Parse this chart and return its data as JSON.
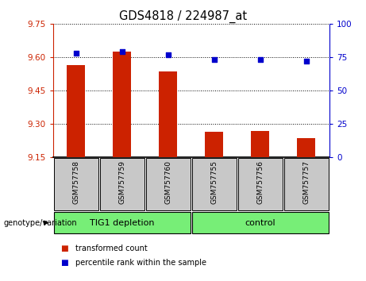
{
  "title": "GDS4818 / 224987_at",
  "samples": [
    "GSM757758",
    "GSM757759",
    "GSM757760",
    "GSM757755",
    "GSM757756",
    "GSM757757"
  ],
  "bar_values": [
    9.565,
    9.625,
    9.535,
    9.265,
    9.27,
    9.235
  ],
  "dot_values": [
    78,
    79,
    77,
    73,
    73,
    72
  ],
  "bar_color": "#cc2200",
  "dot_color": "#0000cc",
  "ylim_left": [
    9.15,
    9.75
  ],
  "ylim_right": [
    0,
    100
  ],
  "yticks_left": [
    9.15,
    9.3,
    9.45,
    9.6,
    9.75
  ],
  "yticks_right": [
    0,
    25,
    50,
    75,
    100
  ],
  "group_color": "#77ee77",
  "legend_items": [
    {
      "label": "transformed count",
      "color": "#cc2200"
    },
    {
      "label": "percentile rank within the sample",
      "color": "#0000cc"
    }
  ],
  "ylabel_left_color": "#cc2200",
  "ylabel_right_color": "#0000cc",
  "tick_label_area_color": "#c8c8c8",
  "genotype_label": "genotype/variation",
  "group1_label": "TIG1 depletion",
  "group2_label": "control"
}
